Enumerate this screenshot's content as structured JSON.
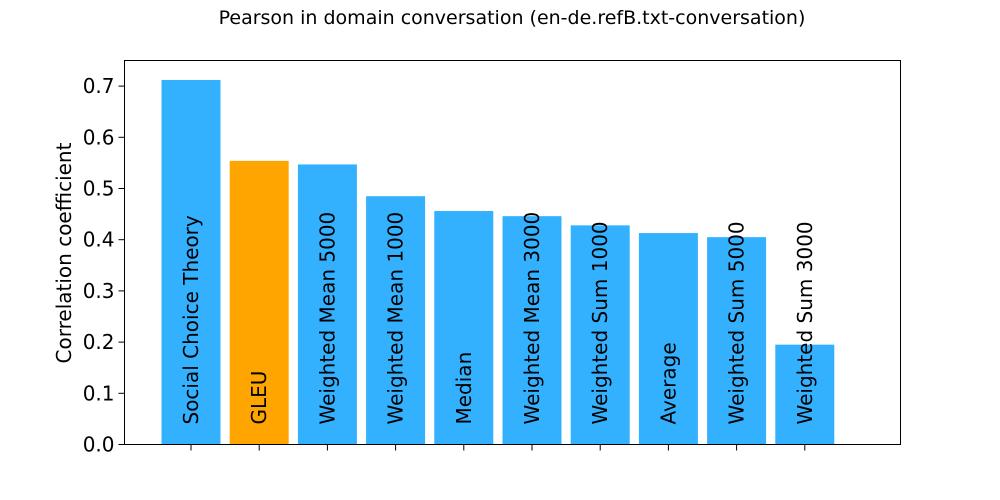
{
  "chart_data": {
    "type": "bar",
    "title": "Pearson in domain conversation (en-de.refB.txt-conversation)",
    "xlabel": "",
    "ylabel": "Correlation coefficient",
    "ylim": [
      0,
      0.75
    ],
    "yticks": [
      "0.0",
      "0.1",
      "0.2",
      "0.3",
      "0.4",
      "0.5",
      "0.6",
      "0.7"
    ],
    "categories": [
      "Social Choice Theory",
      "GLEU",
      "Weighted Mean 5000",
      "Weighted Mean 1000",
      "Median",
      "Weighted Mean 3000",
      "Weighted Sum 1000",
      "Average",
      "Weighted Sum 5000",
      "Weighted Sum 3000"
    ],
    "values": [
      0.712,
      0.554,
      0.547,
      0.485,
      0.456,
      0.446,
      0.428,
      0.413,
      0.405,
      0.195
    ],
    "colors": [
      "#33b1ff",
      "#ffa500",
      "#33b1ff",
      "#33b1ff",
      "#33b1ff",
      "#33b1ff",
      "#33b1ff",
      "#33b1ff",
      "#33b1ff",
      "#33b1ff"
    ],
    "grid": false,
    "legend": "none"
  }
}
